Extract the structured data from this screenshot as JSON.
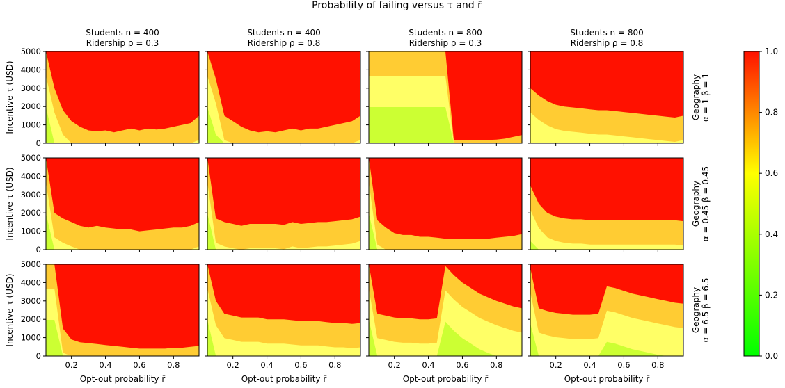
{
  "figure": {
    "title": "Probability of failing versus τ and r̄"
  },
  "columns": [
    {
      "students": "Students n = 400",
      "ridership": "Ridership ρ = 0.3"
    },
    {
      "students": "Students n = 400",
      "ridership": "Ridership ρ = 0.8"
    },
    {
      "students": "Students n = 800",
      "ridership": "Ridership ρ = 0.3"
    },
    {
      "students": "Students n = 800",
      "ridership": "Ridership ρ = 0.8"
    }
  ],
  "rows": [
    {
      "geography": "Geography",
      "params": "α = 1 β = 1"
    },
    {
      "geography": "Geography",
      "params": "α = 0.45 β = 0.45"
    },
    {
      "geography": "Geography",
      "params": "α = 6.5 β = 6.5"
    }
  ],
  "colorbar": {
    "ticks": [
      "1.0",
      "0.8",
      "0.6",
      "0.4",
      "0.2",
      "0.0"
    ],
    "colors": {
      "low": "#00ff00",
      "mid": "#ffff00",
      "high": "#ff1100"
    },
    "range": [
      0,
      1
    ]
  },
  "chart_data": {
    "type": "heatmap",
    "xlabel": "Opt-out probability r̄",
    "ylabel": "Incentive τ (USD)",
    "xlim": [
      0.05,
      0.95
    ],
    "ylim": [
      0,
      5000
    ],
    "xticks": [
      "0.2",
      "0.4",
      "0.6",
      "0.8"
    ],
    "xtick_values": [
      0.2,
      0.4,
      0.6,
      0.8
    ],
    "yticks": [
      "0",
      "1000",
      "2000",
      "3000",
      "4000",
      "5000"
    ],
    "ytick_values": [
      0,
      1000,
      2000,
      3000,
      4000,
      5000
    ],
    "boundary_points_r": [
      0.05,
      0.1,
      0.15,
      0.2,
      0.25,
      0.3,
      0.35,
      0.4,
      0.45,
      0.5,
      0.55,
      0.6,
      0.65,
      0.7,
      0.75,
      0.8,
      0.85,
      0.9,
      0.95
    ],
    "panels": [
      {
        "row": 0,
        "col": 0,
        "tau_threshold": [
          5000,
          3000,
          1800,
          1200,
          900,
          700,
          650,
          700,
          600,
          700,
          800,
          700,
          800,
          750,
          800,
          900,
          1000,
          1100,
          1500
        ]
      },
      {
        "row": 0,
        "col": 1,
        "tau_threshold": [
          5000,
          3500,
          1500,
          1200,
          900,
          700,
          600,
          650,
          600,
          700,
          800,
          700,
          800,
          800,
          900,
          1000,
          1100,
          1200,
          1500
        ]
      },
      {
        "row": 0,
        "col": 2,
        "tau_threshold": [
          5000,
          5000,
          5000,
          5000,
          5000,
          5000,
          5000,
          5000,
          5000,
          5000,
          150,
          150,
          150,
          150,
          180,
          200,
          250,
          350,
          450
        ]
      },
      {
        "row": 0,
        "col": 3,
        "tau_threshold": [
          3000,
          2600,
          2300,
          2100,
          2000,
          1950,
          1900,
          1850,
          1800,
          1800,
          1750,
          1700,
          1650,
          1600,
          1550,
          1500,
          1450,
          1400,
          1500
        ]
      },
      {
        "row": 1,
        "col": 0,
        "tau_threshold": [
          5000,
          2000,
          1700,
          1500,
          1300,
          1200,
          1300,
          1200,
          1150,
          1100,
          1100,
          1000,
          1050,
          1100,
          1150,
          1200,
          1200,
          1300,
          1500
        ]
      },
      {
        "row": 1,
        "col": 1,
        "tau_threshold": [
          5000,
          1700,
          1500,
          1400,
          1300,
          1400,
          1400,
          1400,
          1400,
          1350,
          1500,
          1400,
          1450,
          1500,
          1500,
          1550,
          1600,
          1650,
          1800
        ]
      },
      {
        "row": 1,
        "col": 2,
        "tau_threshold": [
          5000,
          1600,
          1200,
          900,
          800,
          800,
          700,
          700,
          650,
          600,
          600,
          600,
          600,
          600,
          600,
          650,
          700,
          750,
          850
        ]
      },
      {
        "row": 1,
        "col": 3,
        "tau_threshold": [
          3500,
          2500,
          2000,
          1800,
          1700,
          1650,
          1650,
          1600,
          1600,
          1600,
          1600,
          1600,
          1600,
          1600,
          1600,
          1600,
          1600,
          1600,
          1550
        ]
      },
      {
        "row": 2,
        "col": 0,
        "tau_threshold": [
          5000,
          5000,
          1500,
          900,
          750,
          700,
          650,
          600,
          550,
          500,
          450,
          400,
          400,
          400,
          400,
          450,
          450,
          500,
          550
        ]
      },
      {
        "row": 2,
        "col": 1,
        "tau_threshold": [
          5000,
          3000,
          2300,
          2200,
          2100,
          2100,
          2100,
          2000,
          2000,
          2000,
          1950,
          1900,
          1900,
          1900,
          1850,
          1800,
          1800,
          1750,
          1800
        ]
      },
      {
        "row": 2,
        "col": 2,
        "tau_threshold": [
          5000,
          2300,
          2200,
          2100,
          2050,
          2050,
          2000,
          2000,
          2050,
          4900,
          4400,
          4000,
          3700,
          3400,
          3200,
          3000,
          2850,
          2700,
          2600
        ]
      },
      {
        "row": 2,
        "col": 3,
        "tau_threshold": [
          4800,
          2600,
          2450,
          2350,
          2300,
          2250,
          2250,
          2250,
          2300,
          3800,
          3700,
          3550,
          3400,
          3300,
          3200,
          3100,
          3000,
          2900,
          2850
        ]
      }
    ]
  }
}
